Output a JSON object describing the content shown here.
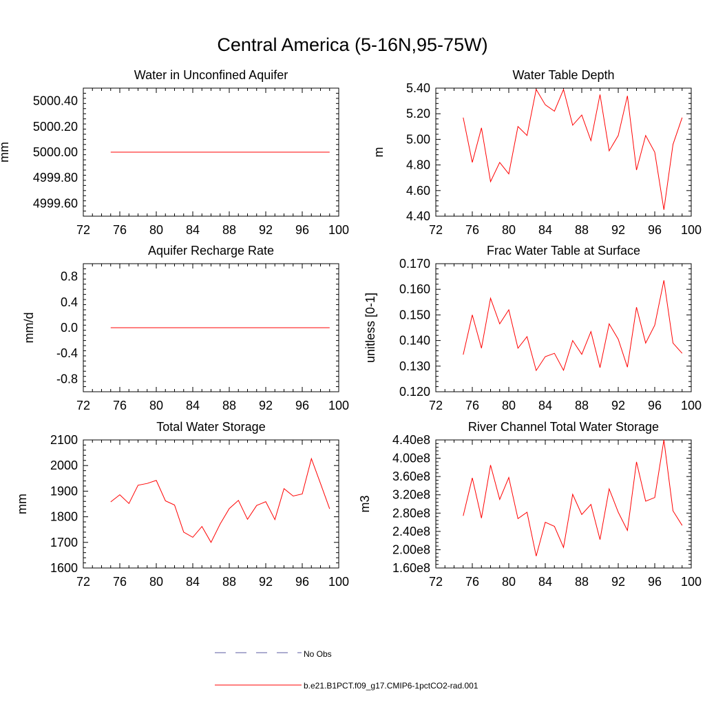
{
  "title": "Central America (5-16N,95-75W)",
  "legend": {
    "placement": "bottom-center",
    "entries": [
      {
        "label": "No Obs",
        "color": "#5a5aa0",
        "style": "dashed"
      },
      {
        "label": "b.e21.B1PCT.f09_g17.CMIP6-1pctCO2-rad.001",
        "color": "#ff0000",
        "style": "solid"
      }
    ]
  },
  "chart_data": [
    {
      "type": "line",
      "title": "Water in Unconfined Aquifer",
      "xlabel": "",
      "ylabel": "mm",
      "xlim": [
        72,
        100
      ],
      "ylim": [
        4999.5,
        5000.5
      ],
      "xticks": [
        72,
        76,
        80,
        84,
        88,
        92,
        96,
        100
      ],
      "xtick_labels": [
        "72",
        "76",
        "80",
        "84",
        "88",
        "92",
        "96",
        "100"
      ],
      "yticks": [
        4999.6,
        4999.8,
        5000.0,
        5000.2,
        5000.4
      ],
      "ytick_labels": [
        "4999.60",
        "4999.80",
        "5000.00",
        "5000.20",
        "5000.40"
      ],
      "x": [
        75,
        76,
        77,
        78,
        79,
        80,
        81,
        82,
        83,
        84,
        85,
        86,
        87,
        88,
        89,
        90,
        91,
        92,
        93,
        94,
        95,
        96,
        97,
        98,
        99
      ],
      "series": [
        {
          "name": "b.e21.B1PCT.f09_g17.CMIP6-1pctCO2-rad.001",
          "color": "#ff0000",
          "values": [
            5000,
            5000,
            5000,
            5000,
            5000,
            5000,
            5000,
            5000,
            5000,
            5000,
            5000,
            5000,
            5000,
            5000,
            5000,
            5000,
            5000,
            5000,
            5000,
            5000,
            5000,
            5000,
            5000,
            5000,
            5000
          ]
        }
      ]
    },
    {
      "type": "line",
      "title": "Water Table Depth",
      "xlabel": "",
      "ylabel": "m",
      "xlim": [
        72,
        100
      ],
      "ylim": [
        4.4,
        5.4
      ],
      "xticks": [
        72,
        76,
        80,
        84,
        88,
        92,
        96,
        100
      ],
      "xtick_labels": [
        "72",
        "76",
        "80",
        "84",
        "88",
        "92",
        "96",
        "100"
      ],
      "yticks": [
        4.4,
        4.6,
        4.8,
        5.0,
        5.2,
        5.4
      ],
      "ytick_labels": [
        "4.40",
        "4.60",
        "4.80",
        "5.00",
        "5.20",
        "5.40"
      ],
      "x": [
        75,
        76,
        77,
        78,
        79,
        80,
        81,
        82,
        83,
        84,
        85,
        86,
        87,
        88,
        89,
        90,
        91,
        92,
        93,
        94,
        95,
        96,
        97,
        98,
        99
      ],
      "series": [
        {
          "name": "b.e21.B1PCT.f09_g17.CMIP6-1pctCO2-rad.001",
          "color": "#ff0000",
          "values": [
            5.17,
            4.82,
            5.09,
            4.67,
            4.82,
            4.73,
            5.1,
            5.03,
            5.39,
            5.27,
            5.22,
            5.39,
            5.11,
            5.19,
            4.99,
            5.35,
            4.91,
            5.03,
            5.34,
            4.76,
            5.03,
            4.9,
            4.45,
            4.96,
            5.17
          ]
        }
      ]
    },
    {
      "type": "line",
      "title": "Aquifer Recharge Rate",
      "xlabel": "",
      "ylabel": "mm/d",
      "xlim": [
        72,
        100
      ],
      "ylim": [
        -1.0,
        1.0
      ],
      "xticks": [
        72,
        76,
        80,
        84,
        88,
        92,
        96,
        100
      ],
      "xtick_labels": [
        "72",
        "76",
        "80",
        "84",
        "88",
        "92",
        "96",
        "100"
      ],
      "yticks": [
        -0.8,
        -0.4,
        0.0,
        0.4,
        0.8
      ],
      "ytick_labels": [
        "-0.8",
        "-0.4",
        "0.0",
        "0.4",
        "0.8"
      ],
      "x": [
        75,
        76,
        77,
        78,
        79,
        80,
        81,
        82,
        83,
        84,
        85,
        86,
        87,
        88,
        89,
        90,
        91,
        92,
        93,
        94,
        95,
        96,
        97,
        98,
        99
      ],
      "series": [
        {
          "name": "b.e21.B1PCT.f09_g17.CMIP6-1pctCO2-rad.001",
          "color": "#ff0000",
          "values": [
            0,
            0,
            0,
            0,
            0,
            0,
            0,
            0,
            0,
            0,
            0,
            0,
            0,
            0,
            0,
            0,
            0,
            0,
            0,
            0,
            0,
            0,
            0,
            0,
            0
          ]
        }
      ]
    },
    {
      "type": "line",
      "title": "Frac Water Table at Surface",
      "xlabel": "",
      "ylabel": "unitless [0-1]",
      "xlim": [
        72,
        100
      ],
      "ylim": [
        0.12,
        0.17
      ],
      "xticks": [
        72,
        76,
        80,
        84,
        88,
        92,
        96,
        100
      ],
      "xtick_labels": [
        "72",
        "76",
        "80",
        "84",
        "88",
        "92",
        "96",
        "100"
      ],
      "yticks": [
        0.12,
        0.13,
        0.14,
        0.15,
        0.16,
        0.17
      ],
      "ytick_labels": [
        "0.120",
        "0.130",
        "0.140",
        "0.150",
        "0.160",
        "0.170"
      ],
      "x": [
        75,
        76,
        77,
        78,
        79,
        80,
        81,
        82,
        83,
        84,
        85,
        86,
        87,
        88,
        89,
        90,
        91,
        92,
        93,
        94,
        95,
        96,
        97,
        98,
        99
      ],
      "series": [
        {
          "name": "b.e21.B1PCT.f09_g17.CMIP6-1pctCO2-rad.001",
          "color": "#ff0000",
          "values": [
            0.1345,
            0.15,
            0.137,
            0.1565,
            0.1465,
            0.152,
            0.137,
            0.1415,
            0.1283,
            0.1337,
            0.135,
            0.1284,
            0.14,
            0.1346,
            0.1435,
            0.1294,
            0.1465,
            0.1405,
            0.1296,
            0.153,
            0.139,
            0.146,
            0.1635,
            0.139,
            0.135
          ]
        }
      ]
    },
    {
      "type": "line",
      "title": "Total Water Storage",
      "xlabel": "",
      "ylabel": "mm",
      "xlim": [
        72,
        100
      ],
      "ylim": [
        1600,
        2100
      ],
      "xticks": [
        72,
        76,
        80,
        84,
        88,
        92,
        96,
        100
      ],
      "xtick_labels": [
        "72",
        "76",
        "80",
        "84",
        "88",
        "92",
        "96",
        "100"
      ],
      "yticks": [
        1600,
        1700,
        1800,
        1900,
        2000,
        2100
      ],
      "ytick_labels": [
        "1600",
        "1700",
        "1800",
        "1900",
        "2000",
        "2100"
      ],
      "x": [
        75,
        76,
        77,
        78,
        79,
        80,
        81,
        82,
        83,
        84,
        85,
        86,
        87,
        88,
        89,
        90,
        91,
        92,
        93,
        94,
        95,
        96,
        97,
        98,
        99
      ],
      "series": [
        {
          "name": "b.e21.B1PCT.f09_g17.CMIP6-1pctCO2-rad.001",
          "color": "#ff0000",
          "values": [
            1858,
            1886,
            1852,
            1923,
            1930,
            1942,
            1862,
            1846,
            1740,
            1720,
            1762,
            1700,
            1772,
            1832,
            1864,
            1790,
            1844,
            1859,
            1789,
            1910,
            1881,
            1889,
            2027,
            1930,
            1831
          ]
        }
      ]
    },
    {
      "type": "line",
      "title": "River Channel Total Water Storage",
      "xlabel": "",
      "ylabel": "m3",
      "xlim": [
        72,
        100
      ],
      "ylim": [
        160000000,
        440000000
      ],
      "xticks": [
        72,
        76,
        80,
        84,
        88,
        92,
        96,
        100
      ],
      "xtick_labels": [
        "72",
        "76",
        "80",
        "84",
        "88",
        "92",
        "96",
        "100"
      ],
      "yticks": [
        160000000,
        200000000,
        240000000,
        280000000,
        320000000,
        360000000,
        400000000,
        440000000
      ],
      "ytick_labels": [
        "1.60e8",
        "2.00e8",
        "2.40e8",
        "2.80e8",
        "3.20e8",
        "3.60e8",
        "4.00e8",
        "4.40e8"
      ],
      "x": [
        75,
        76,
        77,
        78,
        79,
        80,
        81,
        82,
        83,
        84,
        85,
        86,
        87,
        88,
        89,
        90,
        91,
        92,
        93,
        94,
        95,
        96,
        97,
        98,
        99
      ],
      "series": [
        {
          "name": "b.e21.B1PCT.f09_g17.CMIP6-1pctCO2-rad.001",
          "color": "#ff0000",
          "values": [
            274000000,
            357000000,
            269000000,
            385000000,
            310000000,
            358000000,
            268000000,
            282000000,
            186000000,
            260000000,
            251000000,
            205000000,
            321000000,
            277000000,
            299000000,
            222000000,
            333000000,
            282000000,
            242000000,
            392000000,
            306000000,
            314000000,
            440000000,
            285000000,
            253000000
          ]
        }
      ]
    }
  ]
}
